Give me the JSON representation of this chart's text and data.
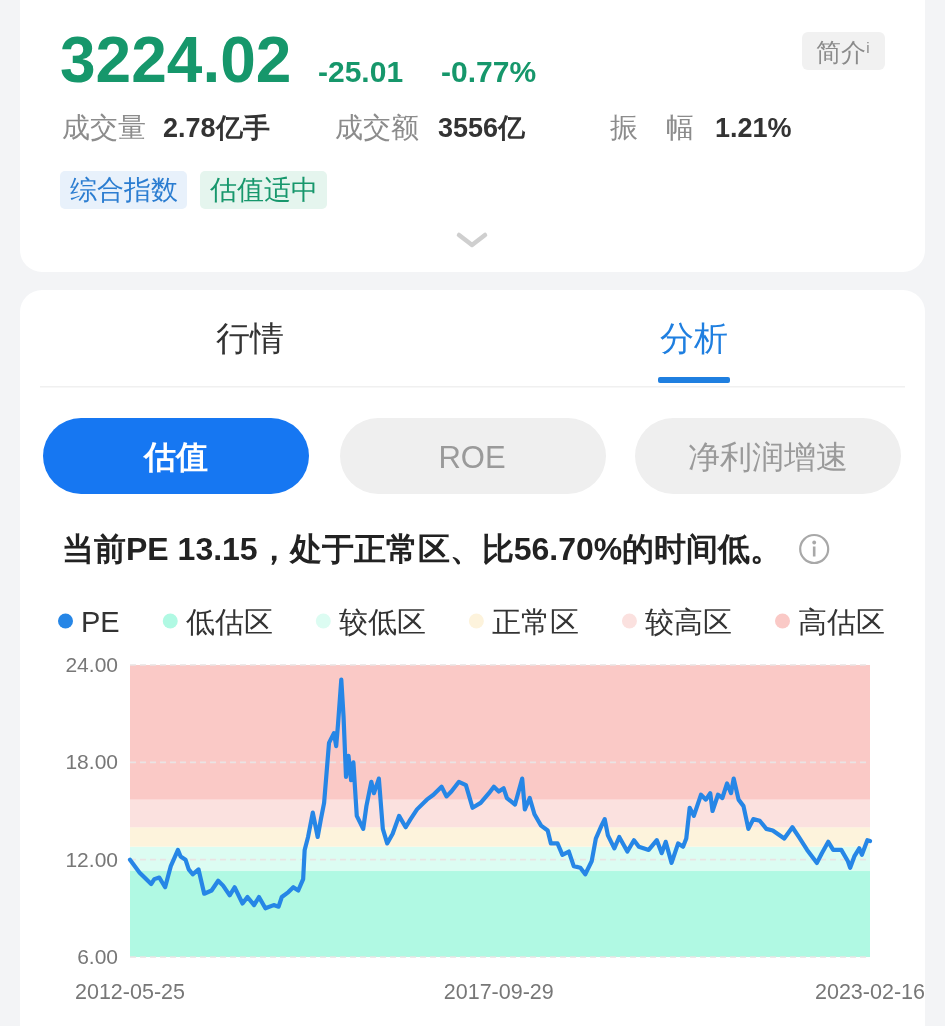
{
  "chart_data": [
    {
      "type": "other",
      "annotations": [
        "3224.02",
        "-25.01",
        "-0.77%",
        "简介$^{i}$",
        "成交量",
        "2.78亿手",
        "成交额",
        "3556亿",
        "振　幅",
        "1.21%",
        "综合指数",
        "估值适中",
        "行情",
        "分析",
        "估值",
        "ROE",
        "净利润增速"
      ]
    },
    {
      "type": "line",
      "title": "当前PE 13.15，处于正常区、比56.70%的时间低。",
      "xlim": [
        "2012-05-25",
        "2023-02-16"
      ],
      "xticks": [
        "2012-05-25",
        "2017-09-29",
        "2023-02-16"
      ],
      "ylim": [
        6,
        24
      ],
      "yticks": [
        {
          "value": 6,
          "label": "6.00"
        },
        {
          "value": 12,
          "label": "12.00"
        },
        {
          "value": 18,
          "label": "18.00"
        },
        {
          "value": 24,
          "label": "24.00"
        }
      ],
      "grid": "y",
      "legend": "top",
      "bands": [
        {
          "axis": "y",
          "from": 6,
          "to": 11.3,
          "label": "低估区",
          "color": "#b0f9e3"
        },
        {
          "axis": "y",
          "from": 11.3,
          "to": 12.8,
          "label": "较低区",
          "color": "#dcfcf2"
        },
        {
          "axis": "y",
          "from": 12.8,
          "to": 14.0,
          "label": "正常区",
          "color": "#fdf3dc"
        },
        {
          "axis": "y",
          "from": 14.0,
          "to": 15.7,
          "label": "较高区",
          "color": "#fbe1df"
        },
        {
          "axis": "y",
          "from": 15.7,
          "to": 24,
          "label": "高估区",
          "color": "#fac9c6"
        }
      ],
      "x": [
        "2012-05-25",
        "2012-07-15",
        "2012-08-10",
        "2012-09-14",
        "2012-10-01",
        "2012-10-27",
        "2012-11-27",
        "2012-12-27",
        "2013-02-03",
        "2013-02-17",
        "2013-03-15",
        "2013-04-01",
        "2013-04-22",
        "2013-05-23",
        "2013-06-22",
        "2013-07-31",
        "2013-09-04",
        "2013-09-30",
        "2013-11-04",
        "2013-11-30",
        "2014-01-11",
        "2014-02-06",
        "2014-03-13",
        "2014-04-08",
        "2014-05-12",
        "2014-06-25",
        "2014-07-21",
        "2014-08-07",
        "2014-09-11",
        "2014-10-07",
        "2014-11-02",
        "2014-11-28",
        "2014-12-06",
        "2014-12-24",
        "2015-01-18",
        "2015-02-13",
        "2015-03-02",
        "2015-03-19",
        "2015-04-14",
        "2015-05-10",
        "2015-05-22",
        "2015-06-01",
        "2015-06-18",
        "2015-06-30",
        "2015-07-13",
        "2015-07-26",
        "2015-08-09",
        "2015-08-21",
        "2015-09-08",
        "2015-10-12",
        "2015-10-29",
        "2015-11-24",
        "2015-12-08",
        "2016-01-03",
        "2016-01-24",
        "2016-02-16",
        "2016-03-16",
        "2016-04-19",
        "2016-05-24",
        "2016-06-19",
        "2016-07-23",
        "2016-09-13",
        "2016-10-18",
        "2016-11-30",
        "2016-12-26",
        "2017-01-21",
        "2017-03-02",
        "2017-04-08",
        "2017-05-13",
        "2017-06-25",
        "2017-08-08",
        "2017-09-03",
        "2017-09-29",
        "2017-10-25",
        "2017-11-11",
        "2017-12-24",
        "2018-01-31",
        "2018-02-14",
        "2018-03-12",
        "2018-04-06",
        "2018-05-11",
        "2018-06-15",
        "2018-07-02",
        "2018-08-06",
        "2018-09-01",
        "2018-10-05",
        "2018-10-31",
        "2018-12-05",
        "2018-12-31",
        "2019-02-03",
        "2019-02-25",
        "2019-03-27",
        "2019-04-13",
        "2019-04-30",
        "2019-06-03",
        "2019-06-29",
        "2019-08-11",
        "2019-09-15",
        "2019-10-11",
        "2019-12-02",
        "2020-01-14",
        "2020-02-09",
        "2020-03-01",
        "2020-04-01",
        "2020-05-06",
        "2020-06-01",
        "2020-06-18",
        "2020-07-06",
        "2020-07-28",
        "2020-09-04",
        "2020-09-30",
        "2020-10-23",
        "2020-11-04",
        "2020-12-03",
        "2020-12-26",
        "2021-01-20",
        "2021-02-10",
        "2021-02-24",
        "2021-03-22",
        "2021-04-17",
        "2021-05-13",
        "2021-06-08",
        "2021-07-12",
        "2021-08-16",
        "2021-09-19",
        "2021-11-19",
        "2022-01-01",
        "2022-02-04",
        "2022-03-20",
        "2022-05-11",
        "2022-06-06",
        "2022-07-10",
        "2022-08-05",
        "2022-09-17",
        "2022-10-22",
        "2022-11-03",
        "2022-11-25",
        "2022-12-21",
        "2023-01-04",
        "2023-02-02",
        "2023-02-16"
      ],
      "series": [
        {
          "name": "PE",
          "color": "#2686e6",
          "values": [
            12.0,
            11.2,
            10.9,
            10.5,
            10.8,
            10.9,
            10.3,
            11.6,
            12.6,
            12.2,
            12.0,
            11.4,
            11.1,
            11.4,
            9.9,
            10.1,
            10.7,
            10.4,
            9.8,
            10.3,
            9.3,
            9.7,
            9.2,
            9.7,
            9.0,
            9.2,
            9.1,
            9.7,
            10.0,
            10.3,
            10.1,
            10.8,
            12.6,
            13.4,
            14.9,
            13.4,
            14.5,
            15.5,
            19.2,
            19.8,
            19.0,
            20.4,
            23.1,
            20.8,
            17.1,
            18.4,
            16.9,
            18.0,
            14.7,
            13.9,
            15.3,
            16.8,
            16.1,
            17.0,
            13.9,
            13.0,
            13.6,
            14.7,
            14.0,
            14.5,
            15.1,
            15.7,
            16.0,
            16.5,
            15.9,
            16.2,
            16.8,
            16.6,
            15.2,
            15.5,
            16.1,
            16.5,
            16.2,
            16.4,
            15.8,
            15.4,
            17.0,
            15.1,
            15.8,
            14.8,
            14.1,
            13.8,
            13.0,
            13.0,
            12.3,
            12.5,
            11.6,
            11.5,
            11.1,
            11.9,
            13.3,
            14.1,
            14.5,
            13.5,
            12.7,
            13.4,
            12.5,
            13.2,
            12.8,
            12.6,
            13.2,
            12.4,
            13.1,
            11.8,
            13.0,
            12.8,
            13.3,
            15.2,
            14.7,
            16.0,
            15.7,
            16.1,
            15.0,
            16.0,
            15.8,
            16.7,
            16.1,
            17.0,
            15.7,
            15.3,
            13.9,
            14.5,
            14.4,
            13.9,
            13.8,
            13.3,
            14.0,
            13.4,
            12.6,
            11.8,
            12.4,
            13.1,
            12.6,
            12.6,
            11.9,
            11.5,
            12.2,
            12.7,
            12.3,
            13.2,
            13.15
          ]
        }
      ]
    }
  ]
}
